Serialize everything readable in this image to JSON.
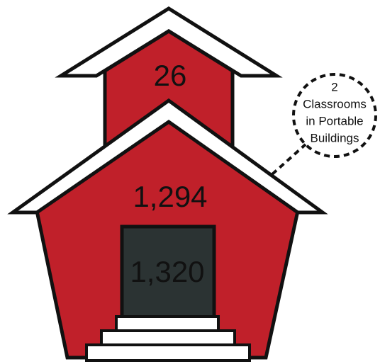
{
  "tower": {
    "label": "26"
  },
  "building": {
    "label": "1,294"
  },
  "door": {
    "label": "1,320"
  },
  "callout": {
    "lines": [
      "2",
      "Classrooms",
      "in Portable",
      "Buildings"
    ]
  }
}
